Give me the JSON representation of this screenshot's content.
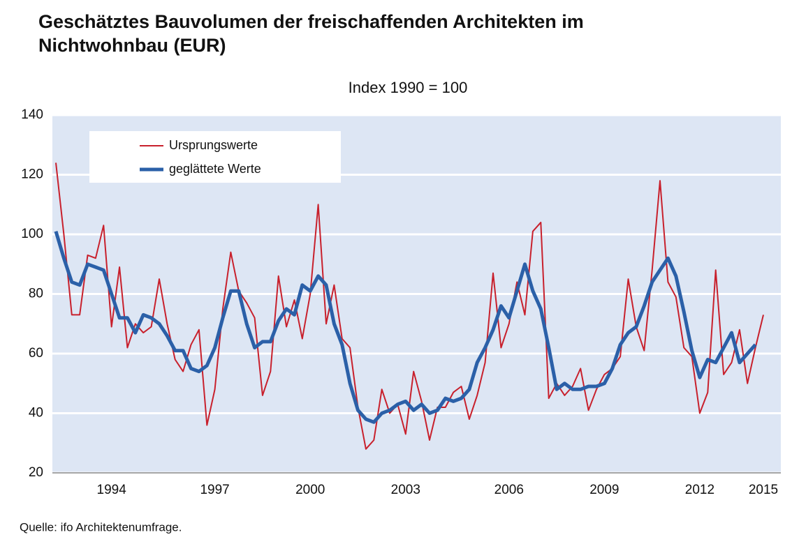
{
  "chart_data": {
    "type": "line",
    "title": "Geschätztes Bauvolumen der freischaffenden Architekten im Nichtwohnbau (EUR)",
    "subtitle": "Index 1990 = 100",
    "source": "Quelle: ifo Architektenumfrage.",
    "categories": [
      null,
      null,
      null,
      null,
      null,
      null,
      null,
      "1994",
      null,
      null,
      null,
      null,
      null,
      null,
      null,
      null,
      null,
      null,
      null,
      null,
      "1997",
      null,
      null,
      null,
      null,
      null,
      null,
      null,
      null,
      null,
      null,
      null,
      "2000",
      null,
      null,
      null,
      null,
      null,
      null,
      null,
      null,
      null,
      null,
      null,
      "2003",
      null,
      null,
      null,
      null,
      null,
      null,
      null,
      null,
      null,
      null,
      null,
      null,
      "2006",
      null,
      null,
      null,
      null,
      null,
      null,
      null,
      null,
      null,
      null,
      null,
      "2009",
      null,
      null,
      null,
      null,
      null,
      null,
      null,
      null,
      null,
      null,
      null,
      "2012",
      null,
      null,
      null,
      null,
      null,
      null,
      null,
      "2015"
    ],
    "series": [
      {
        "name": "Ursprungswerte",
        "color": "#c8202c",
        "width": 2,
        "values": [
          124,
          100,
          73,
          73,
          93,
          92,
          103,
          69,
          89,
          62,
          70,
          67,
          69,
          85,
          70,
          58,
          54,
          63,
          68,
          36,
          48,
          75,
          94,
          81,
          77,
          72,
          46,
          54,
          86,
          69,
          78,
          65,
          80,
          110,
          70,
          83,
          65,
          62,
          42,
          28,
          31,
          48,
          40,
          43,
          33,
          54,
          44,
          31,
          42,
          42,
          47,
          49,
          38,
          46,
          57,
          87,
          62,
          70,
          84,
          73,
          101,
          104,
          45,
          50,
          46,
          49,
          55,
          41,
          48,
          53,
          55,
          59,
          85,
          69,
          61,
          88,
          118,
          84,
          79,
          62,
          59,
          40,
          47,
          88,
          53,
          57,
          68,
          50,
          62,
          73
        ]
      },
      {
        "name": "geglättete Werte",
        "color": "#2b60a8",
        "width": 5,
        "values": [
          101,
          92,
          84,
          83,
          90,
          89,
          88,
          80,
          72,
          72,
          67,
          73,
          72,
          70,
          66,
          61,
          61,
          55,
          54,
          56,
          62,
          72,
          81,
          81,
          70,
          62,
          64,
          64,
          71,
          75,
          73,
          83,
          81,
          86,
          83,
          70,
          63,
          50,
          41,
          38,
          37,
          40,
          41,
          43,
          44,
          41,
          43,
          40,
          41,
          45,
          44,
          45,
          48,
          57,
          62,
          68,
          76,
          72,
          81,
          90,
          81,
          75,
          62,
          48,
          50,
          48,
          48,
          49,
          49,
          50,
          55,
          63,
          67,
          69,
          76,
          84,
          88,
          92,
          86,
          74,
          61,
          52,
          58,
          57,
          62,
          67,
          57,
          60,
          63,
          null
        ]
      }
    ],
    "ylim": [
      20,
      140
    ],
    "yticks": [
      20,
      40,
      60,
      80,
      100,
      120,
      140
    ],
    "grid": true,
    "legend": "upper left"
  }
}
